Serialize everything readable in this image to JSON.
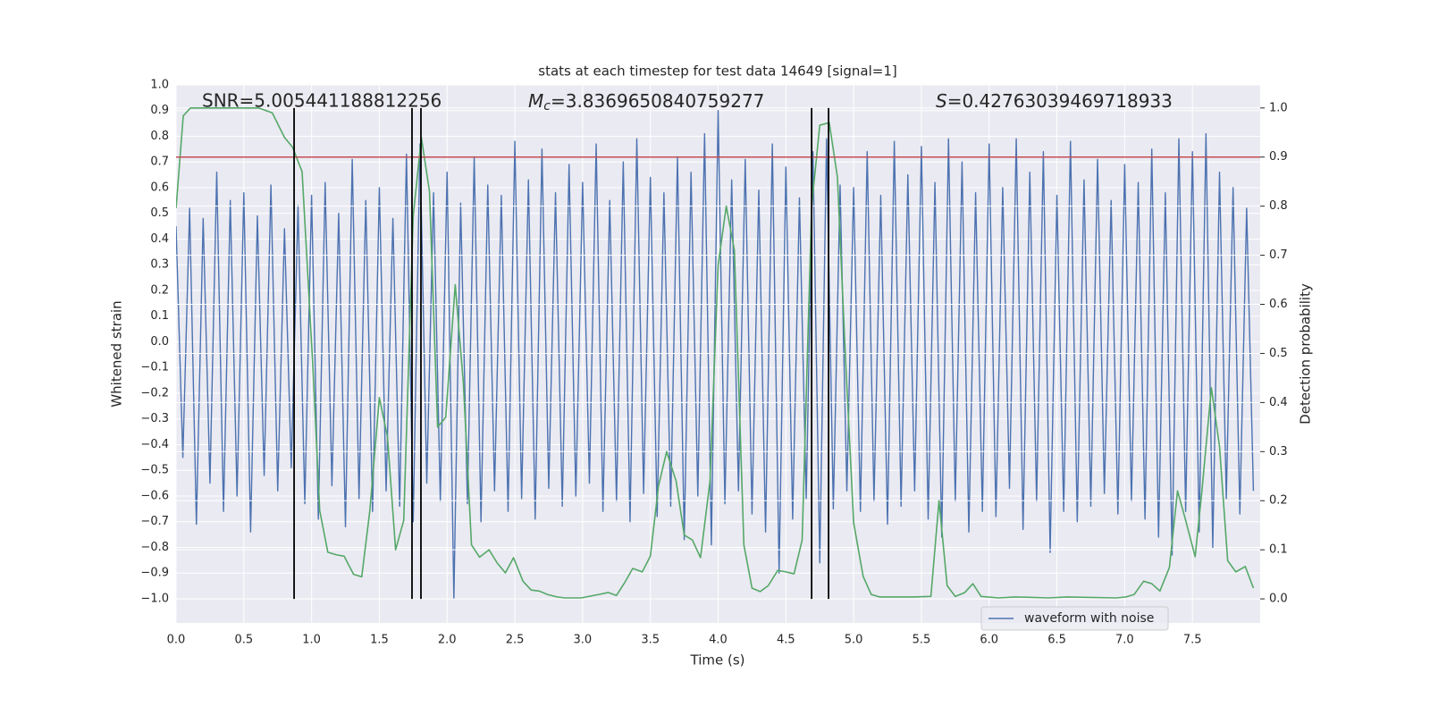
{
  "chart_data": {
    "type": "line",
    "title": "stats at each timestep for test data 14649 [signal=1]",
    "x_label": "Time (s)",
    "y_label": "Whitened strain",
    "y2_label": "Detection probability",
    "annotations": [
      {
        "text": "SNR=5.005441188812256"
      },
      {
        "symbol": "M",
        "subscript": "c",
        "text": "=3.8369650840759277"
      },
      {
        "symbol": "S",
        "text": "=0.42763039469718933"
      }
    ],
    "xlim": [
      0,
      8.0
    ],
    "ylim": [
      -1.094,
      1.0
    ],
    "y2lim": [
      -0.049,
      1.047
    ],
    "xticks": [
      {
        "value": 0,
        "label": "0.0"
      },
      0.5,
      {
        "value": 1,
        "label": "1.0"
      },
      1.5,
      {
        "value": 2,
        "label": "2.0"
      },
      2.5,
      {
        "value": 3,
        "label": "3.0"
      },
      3.5,
      {
        "value": 4,
        "label": "4.0"
      },
      4.5,
      {
        "value": 5,
        "label": "5.0"
      },
      5.5,
      {
        "value": 6,
        "label": "6.0"
      },
      6.5,
      {
        "value": 7,
        "label": "7.0"
      },
      7.5
    ],
    "yticks": [
      {
        "value": 1,
        "label": "1.0"
      },
      0.9,
      0.8,
      0.7,
      0.6,
      0.5,
      0.4,
      0.3,
      0.2,
      0.1,
      {
        "value": 0,
        "label": "0.0"
      },
      {
        "value": -0.1,
        "label": "−0.1"
      },
      {
        "value": -0.2,
        "label": "−0.2"
      },
      {
        "value": -0.3,
        "label": "−0.3"
      },
      {
        "value": -0.4,
        "label": "−0.4"
      },
      {
        "value": -0.5,
        "label": "−0.5"
      },
      {
        "value": -0.6,
        "label": "−0.6"
      },
      {
        "value": -0.7,
        "label": "−0.7"
      },
      {
        "value": -0.8,
        "label": "−0.8"
      },
      {
        "value": -0.9,
        "label": "−0.9"
      },
      {
        "value": -1,
        "label": "−1.0"
      }
    ],
    "y2ticks": [
      {
        "value": 0,
        "label": "0.0"
      },
      0.1,
      0.2,
      0.3,
      0.4,
      0.5,
      0.6,
      0.7,
      0.8,
      0.9,
      {
        "value": 1,
        "label": "1.0"
      }
    ],
    "grid": true,
    "legend": "lower right",
    "series": [
      {
        "name": "waveform with noise",
        "color": "#4c72b0",
        "x": [
          0,
          0.05,
          0.1,
          0.15,
          0.2,
          0.25,
          0.3,
          0.35,
          0.4,
          0.45,
          0.5,
          0.55,
          0.6,
          0.65,
          0.7,
          0.75,
          0.8,
          0.85,
          0.9,
          0.95,
          1,
          1.05,
          1.1,
          1.15,
          1.2,
          1.25,
          1.3,
          1.35,
          1.4,
          1.45,
          1.5,
          1.55,
          1.6,
          1.65,
          1.7,
          1.75,
          1.8,
          1.85,
          1.9,
          1.95,
          2,
          2.05,
          2.1,
          2.15,
          2.2,
          2.25,
          2.3,
          2.35,
          2.4,
          2.45,
          2.5,
          2.55,
          2.6,
          2.65,
          2.7,
          2.75,
          2.8,
          2.85,
          2.9,
          2.95,
          3,
          3.05,
          3.1,
          3.15,
          3.2,
          3.25,
          3.3,
          3.35,
          3.4,
          3.45,
          3.5,
          3.55,
          3.6,
          3.65,
          3.7,
          3.75,
          3.8,
          3.85,
          3.9,
          3.95,
          4,
          4.05,
          4.1,
          4.15,
          4.2,
          4.25,
          4.3,
          4.35,
          4.4,
          4.45,
          4.5,
          4.55,
          4.6,
          4.65,
          4.7,
          4.75,
          4.8,
          4.85,
          4.9,
          4.95,
          5,
          5.05,
          5.1,
          5.15,
          5.2,
          5.25,
          5.3,
          5.35,
          5.4,
          5.45,
          5.5,
          5.55,
          5.6,
          5.65,
          5.7,
          5.75,
          5.8,
          5.85,
          5.9,
          5.95,
          6,
          6.05,
          6.1,
          6.15,
          6.2,
          6.25,
          6.3,
          6.35,
          6.4,
          6.45,
          6.5,
          6.55,
          6.6,
          6.65,
          6.7,
          6.75,
          6.8,
          6.85,
          6.9,
          6.95,
          7,
          7.05,
          7.1,
          7.15,
          7.2,
          7.25,
          7.3,
          7.35,
          7.4,
          7.45,
          7.5,
          7.55,
          7.6,
          7.65,
          7.7,
          7.75,
          7.8,
          7.85,
          7.9,
          7.95
        ],
        "values": [
          0.45,
          -0.45,
          0.52,
          -0.71,
          0.48,
          -0.55,
          0.66,
          -0.66,
          0.55,
          -0.6,
          0.58,
          -0.74,
          0.49,
          -0.52,
          0.61,
          -0.58,
          0.44,
          -0.49,
          0.53,
          -0.63,
          0.57,
          -0.69,
          0.62,
          -0.56,
          0.5,
          -0.72,
          0.71,
          -0.61,
          0.55,
          -0.66,
          0.6,
          -0.58,
          0.48,
          -0.64,
          0.73,
          -0.7,
          0.77,
          -0.55,
          0.58,
          -0.62,
          0.66,
          -1.0,
          0.54,
          -0.63,
          0.72,
          -0.7,
          0.61,
          -0.58,
          0.57,
          -0.66,
          0.78,
          -0.61,
          0.63,
          -0.69,
          0.75,
          -0.57,
          0.58,
          -0.64,
          0.69,
          -0.6,
          0.62,
          -0.55,
          0.77,
          -0.66,
          0.55,
          -0.62,
          0.7,
          -0.7,
          0.79,
          -0.59,
          0.64,
          -0.68,
          0.58,
          -0.64,
          0.72,
          -0.77,
          0.66,
          -0.6,
          0.81,
          -0.79,
          0.9,
          -0.63,
          0.63,
          -0.58,
          0.71,
          -0.67,
          0.59,
          -0.74,
          0.77,
          -0.9,
          0.68,
          -0.69,
          0.56,
          -0.61,
          0.74,
          -0.86,
          0.79,
          -0.65,
          0.61,
          -0.58,
          0.6,
          -0.66,
          0.74,
          -0.62,
          0.57,
          -0.71,
          0.78,
          -0.64,
          0.65,
          -0.58,
          0.76,
          -0.69,
          0.62,
          -0.76,
          0.79,
          -0.62,
          0.7,
          -0.74,
          0.58,
          -0.66,
          0.77,
          -0.68,
          0.6,
          -0.57,
          0.79,
          -0.73,
          0.66,
          -0.62,
          0.74,
          -0.82,
          0.57,
          -0.66,
          0.78,
          -0.7,
          0.63,
          -0.64,
          0.71,
          -0.59,
          0.55,
          -0.67,
          0.69,
          -0.62,
          0.62,
          -0.69,
          0.75,
          -0.76,
          0.58,
          -0.83,
          0.79,
          -0.66,
          0.74,
          -0.74,
          0.81,
          -0.8,
          0.66,
          -0.61,
          0.6,
          -0.67,
          0.52,
          -0.58
        ]
      },
      {
        "color": "#55a868",
        "axis": "y2",
        "x": [
          0,
          0.053,
          0.106,
          0.61,
          0.71,
          0.8,
          0.86,
          0.93,
          1.01,
          1.06,
          1.12,
          1.18,
          1.24,
          1.31,
          1.37,
          1.43,
          1.5,
          1.56,
          1.62,
          1.68,
          1.75,
          1.81,
          1.87,
          1.93,
          1.99,
          2.06,
          2.12,
          2.18,
          2.24,
          2.31,
          2.37,
          2.43,
          2.49,
          2.56,
          2.62,
          2.68,
          2.74,
          2.81,
          2.87,
          2.99,
          3.12,
          3.19,
          3.25,
          3.31,
          3.37,
          3.44,
          3.5,
          3.56,
          3.62,
          3.69,
          3.75,
          3.81,
          3.87,
          3.94,
          4.0,
          4.06,
          4.12,
          4.19,
          4.25,
          4.31,
          4.37,
          4.44,
          4.5,
          4.56,
          4.62,
          4.69,
          4.75,
          4.82,
          4.88,
          4.94,
          5.0,
          5.07,
          5.13,
          5.19,
          5.32,
          5.44,
          5.57,
          5.63,
          5.69,
          5.75,
          5.82,
          5.88,
          5.94,
          6.07,
          6.19,
          6.44,
          6.57,
          6.94,
          7.01,
          7.07,
          7.14,
          7.2,
          7.26,
          7.33,
          7.39,
          7.45,
          7.52,
          7.57,
          7.64,
          7.7,
          7.76,
          7.82,
          7.89,
          7.95
        ],
        "values": [
          0.796,
          0.984,
          1.0,
          1.0,
          0.99,
          0.94,
          0.92,
          0.87,
          0.47,
          0.18,
          0.095,
          0.09,
          0.087,
          0.05,
          0.045,
          0.18,
          0.41,
          0.33,
          0.1,
          0.16,
          0.78,
          0.94,
          0.83,
          0.35,
          0.37,
          0.64,
          0.44,
          0.11,
          0.085,
          0.1,
          0.073,
          0.053,
          0.084,
          0.036,
          0.018,
          0.016,
          0.009,
          0.004,
          0.002,
          0.002,
          0.009,
          0.013,
          0.007,
          0.033,
          0.062,
          0.055,
          0.087,
          0.23,
          0.3,
          0.24,
          0.13,
          0.12,
          0.084,
          0.24,
          0.68,
          0.8,
          0.71,
          0.11,
          0.022,
          0.015,
          0.027,
          0.058,
          0.055,
          0.051,
          0.12,
          0.8,
          0.965,
          0.97,
          0.86,
          0.49,
          0.155,
          0.046,
          0.009,
          0.004,
          0.004,
          0.004,
          0.005,
          0.2,
          0.027,
          0.005,
          0.013,
          0.031,
          0.005,
          0.002,
          0.004,
          0.002,
          0.004,
          0.002,
          0.004,
          0.009,
          0.036,
          0.031,
          0.016,
          0.064,
          0.22,
          0.16,
          0.086,
          0.22,
          0.43,
          0.31,
          0.078,
          0.055,
          0.066,
          0.022
        ]
      }
    ],
    "threshold": {
      "value": 0.9,
      "axis": "y2",
      "color": "#c44e52"
    },
    "vlines": {
      "x": [
        0.871,
        1.741,
        1.807,
        4.69,
        4.815
      ],
      "range": [
        0,
        1
      ],
      "axis": "y2",
      "color": "#000000"
    }
  }
}
